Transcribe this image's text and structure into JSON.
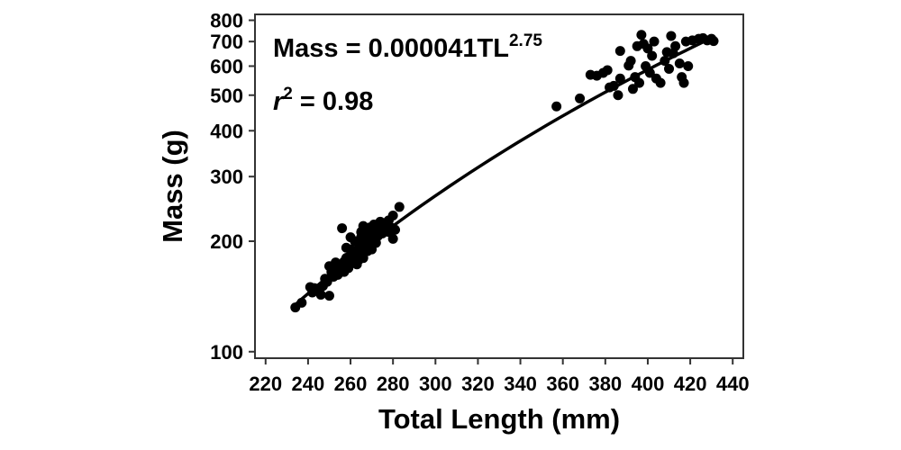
{
  "chart_data": {
    "type": "scatter",
    "title": "",
    "xlabel": "Total Length (mm)",
    "ylabel": "Mass (g)",
    "xlim": [
      215,
      445
    ],
    "ylim": [
      96,
      830
    ],
    "y_scale": "log",
    "grid": false,
    "x_ticks": [
      220,
      240,
      260,
      280,
      300,
      320,
      340,
      360,
      380,
      400,
      420,
      440
    ],
    "x_tick_labels": [
      "220",
      "240",
      "260",
      "280",
      "300",
      "320",
      "340",
      "360",
      "380",
      "400",
      "420",
      "440"
    ],
    "y_ticks": [
      100,
      200,
      300,
      400,
      500,
      600,
      700,
      800
    ],
    "y_tick_labels": [
      "100",
      "200",
      "300",
      "400",
      "500",
      "600",
      "700",
      "800"
    ],
    "annotations": {
      "equation_text": "Mass = 0.000041TL",
      "equation_exponent": "2.75",
      "r2_var": "r",
      "r2_exponent": "2",
      "r2_text": " = 0.98"
    },
    "fit": {
      "name": "Mass = 0.000041TL^2.75",
      "coefficient": 4.1e-05,
      "exponent": 2.75,
      "x_range": [
        234,
        431
      ],
      "color": "#000000"
    },
    "series": [
      {
        "color": "#000000",
        "points": [
          [
            234,
            132
          ],
          [
            237,
            136
          ],
          [
            241,
            150
          ],
          [
            242,
            145
          ],
          [
            243,
            149
          ],
          [
            245,
            148
          ],
          [
            246,
            143
          ],
          [
            247,
            151
          ],
          [
            248,
            158
          ],
          [
            249,
            155
          ],
          [
            250,
            142
          ],
          [
            250,
            171
          ],
          [
            251,
            165
          ],
          [
            252,
            160
          ],
          [
            252,
            168
          ],
          [
            253,
            175
          ],
          [
            254,
            162
          ],
          [
            255,
            170
          ],
          [
            256,
            173
          ],
          [
            256,
            217
          ],
          [
            257,
            176
          ],
          [
            257,
            165
          ],
          [
            258,
            180
          ],
          [
            258,
            192
          ],
          [
            259,
            169
          ],
          [
            259,
            181
          ],
          [
            260,
            205
          ],
          [
            260,
            190
          ],
          [
            261,
            176
          ],
          [
            261,
            184
          ],
          [
            262,
            200
          ],
          [
            262,
            183
          ],
          [
            263,
            188
          ],
          [
            263,
            173
          ],
          [
            264,
            178
          ],
          [
            264,
            195
          ],
          [
            265,
            205
          ],
          [
            265,
            212
          ],
          [
            265,
            190
          ],
          [
            266,
            180
          ],
          [
            266,
            220
          ],
          [
            267,
            196
          ],
          [
            267,
            208
          ],
          [
            268,
            213
          ],
          [
            268,
            188
          ],
          [
            269,
            200
          ],
          [
            269,
            218
          ],
          [
            270,
            190
          ],
          [
            270,
            210
          ],
          [
            271,
            222
          ],
          [
            271,
            205
          ],
          [
            272,
            215
          ],
          [
            272,
            198
          ],
          [
            273,
            207
          ],
          [
            274,
            226
          ],
          [
            274,
            213
          ],
          [
            275,
            210
          ],
          [
            276,
            220
          ],
          [
            276,
            216
          ],
          [
            277,
            225
          ],
          [
            278,
            212
          ],
          [
            278,
            228
          ],
          [
            279,
            218
          ],
          [
            280,
            203
          ],
          [
            280,
            235
          ],
          [
            281,
            215
          ],
          [
            283,
            248
          ],
          [
            357,
            466
          ],
          [
            368,
            490
          ],
          [
            373,
            568
          ],
          [
            376,
            565
          ],
          [
            379,
            575
          ],
          [
            381,
            585
          ],
          [
            382,
            525
          ],
          [
            384,
            530
          ],
          [
            386,
            500
          ],
          [
            387,
            555
          ],
          [
            387,
            660
          ],
          [
            391,
            602
          ],
          [
            392,
            620
          ],
          [
            393,
            520
          ],
          [
            394,
            560
          ],
          [
            395,
            680
          ],
          [
            396,
            540
          ],
          [
            397,
            730
          ],
          [
            398,
            690
          ],
          [
            399,
            600
          ],
          [
            400,
            670
          ],
          [
            401,
            575
          ],
          [
            402,
            640
          ],
          [
            403,
            700
          ],
          [
            404,
            555
          ],
          [
            406,
            540
          ],
          [
            408,
            620
          ],
          [
            409,
            655
          ],
          [
            410,
            590
          ],
          [
            411,
            725
          ],
          [
            412,
            650
          ],
          [
            413,
            680
          ],
          [
            415,
            610
          ],
          [
            416,
            560
          ],
          [
            417,
            540
          ],
          [
            418,
            700
          ],
          [
            419,
            600
          ],
          [
            421,
            705
          ],
          [
            424,
            712
          ],
          [
            426,
            715
          ],
          [
            428,
            705
          ],
          [
            430,
            712
          ],
          [
            431,
            702
          ]
        ]
      }
    ]
  }
}
